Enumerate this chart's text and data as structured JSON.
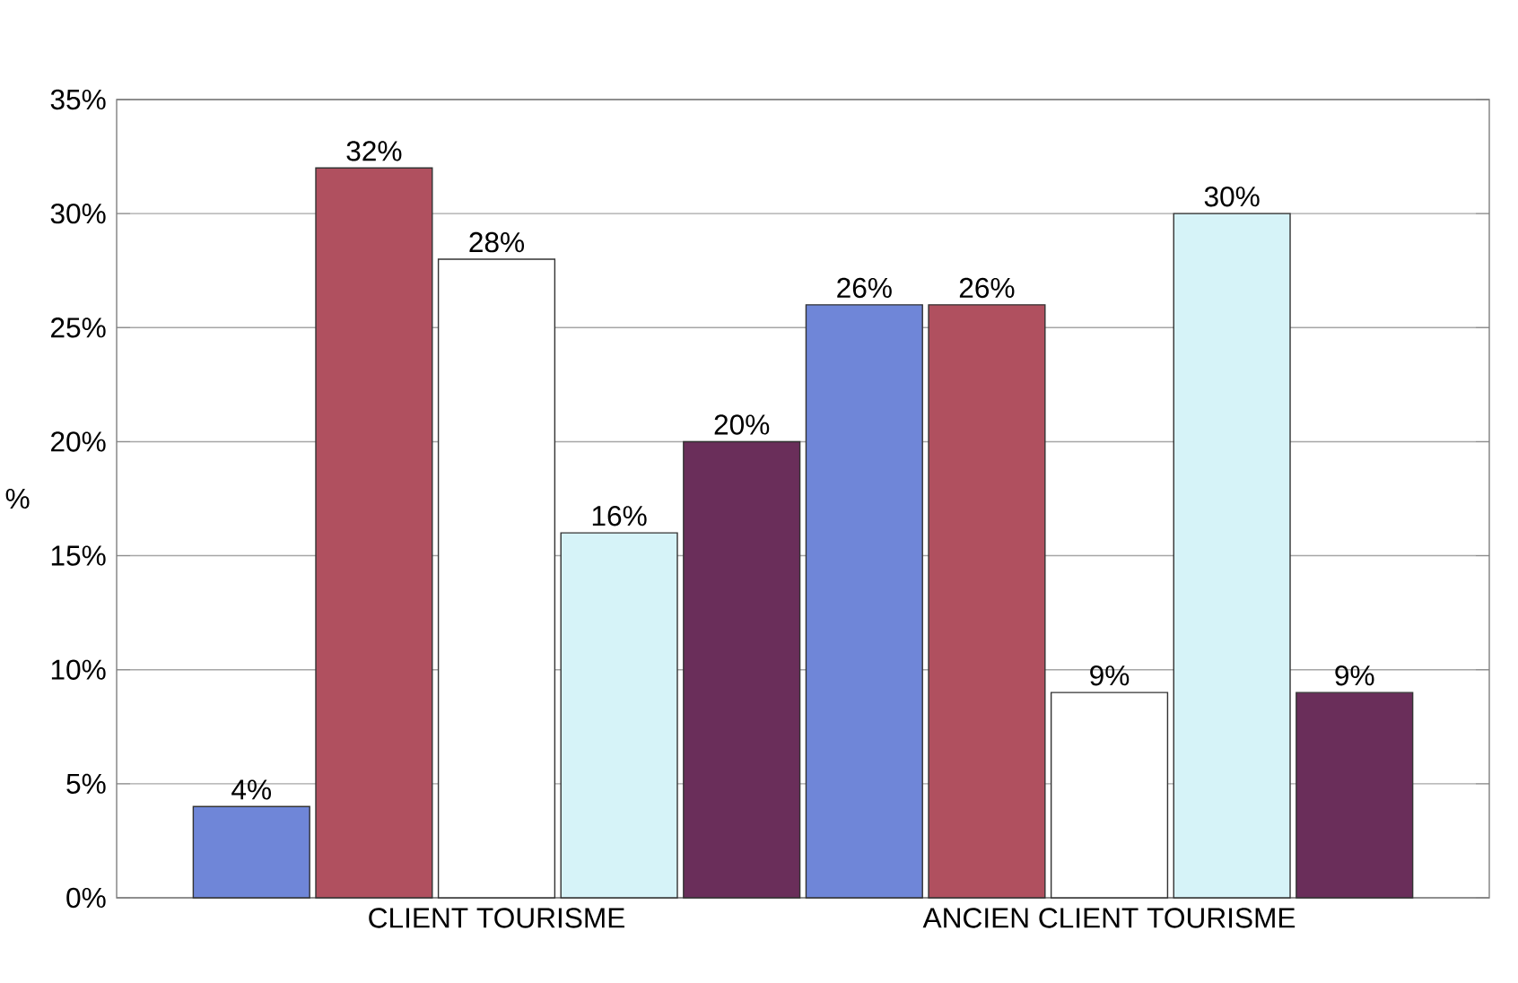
{
  "chart_data": {
    "type": "bar",
    "ylabel": "%",
    "categories": [
      "CLIENT TOURISME",
      "ANCIEN CLIENT TOURISME"
    ],
    "series": [
      {
        "color": "#6f86d8",
        "values": [
          4,
          26
        ],
        "value_labels": [
          "4%",
          "26%"
        ]
      },
      {
        "color": "#b0505f",
        "values": [
          32,
          26
        ],
        "value_labels": [
          "32%",
          "26%"
        ]
      },
      {
        "color": "#ffffff",
        "values": [
          28,
          9
        ],
        "value_labels": [
          "28%",
          "9%"
        ]
      },
      {
        "color": "#d6f3f8",
        "values": [
          16,
          30
        ],
        "value_labels": [
          "16%",
          "30%"
        ]
      },
      {
        "color": "#6a2e5a",
        "values": [
          20,
          9
        ],
        "value_labels": [
          "20%",
          "9%"
        ]
      }
    ],
    "ylim": [
      0,
      35
    ],
    "yticks": [
      {
        "value": 0,
        "label": "0%"
      },
      {
        "value": 5,
        "label": "5%"
      },
      {
        "value": 10,
        "label": "10%"
      },
      {
        "value": 15,
        "label": "15%"
      },
      {
        "value": 20,
        "label": "20%"
      },
      {
        "value": 25,
        "label": "25%"
      },
      {
        "value": 30,
        "label": "30%"
      },
      {
        "value": 35,
        "label": "35%"
      }
    ],
    "grid": "y"
  }
}
